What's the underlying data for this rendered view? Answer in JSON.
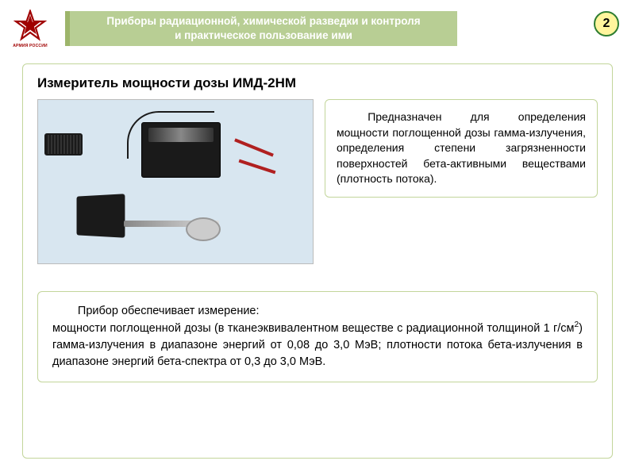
{
  "logo": {
    "caption": "АРМИЯ РОССИИ"
  },
  "header": {
    "title": "Приборы радиационной, химической  разведки и контроля\nи практическое пользование ими"
  },
  "page_number": "2",
  "section_title": "Измеритель мощности дозы ИМД-2НМ",
  "description_box": "Предназначен для определения мощности поглощенной дозы гамма-излучения, определения степени загрязненности поверхностей бета-активными веществами (плотность потока).",
  "capability_box": {
    "lead": "Прибор обеспечивает измерение:",
    "body": "мощности поглощенной дозы (в тканеэквивалентном веществе с радиационной толщиной 1 г/см²) гамма-излучения в диапазоне энергий от 0,08 до 3,0 МэВ; плотности потока бета-излучения в диапазоне энергий бета-спектра от 0,3 до 3,0 МэВ."
  },
  "colors": {
    "header_bg": "#b8ce94",
    "header_accent": "#9db56b",
    "frame_border": "#c2d59a",
    "badge_fill": "#fff59d",
    "badge_border": "#2e7d32"
  }
}
